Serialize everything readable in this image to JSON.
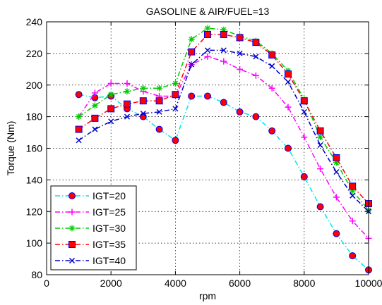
{
  "chart_data": {
    "type": "line",
    "title": "GASOLINE &  AIR/FUEL=13",
    "xlabel": "rpm",
    "ylabel": "Torque (Nm)",
    "xlim": [
      0,
      10000
    ],
    "ylim": [
      80,
      240
    ],
    "xticks": [
      0,
      2000,
      4000,
      6000,
      8000,
      10000
    ],
    "yticks": [
      80,
      100,
      120,
      140,
      160,
      180,
      200,
      220,
      240
    ],
    "grid": true,
    "legend_position": "bottom-left",
    "x": [
      1000,
      1500,
      2000,
      2500,
      3000,
      3500,
      4000,
      4500,
      5000,
      5500,
      6000,
      6500,
      7000,
      7500,
      8000,
      8500,
      9000,
      9500,
      10000
    ],
    "series": [
      {
        "name": "IGT=20",
        "color": "#00e6e6",
        "marker": "circle",
        "marker_face": "#ff0000",
        "marker_edge": "#0000ff",
        "values": [
          194,
          192,
          193,
          185,
          180,
          172,
          165,
          193,
          193,
          189,
          183,
          180,
          171,
          160,
          142,
          123,
          106,
          92,
          83
        ]
      },
      {
        "name": "IGT=25",
        "color": "#ff00ff",
        "marker": "plus",
        "values": [
          180,
          195,
          201,
          201,
          196,
          193,
          193,
          213,
          218,
          215,
          210,
          206,
          198,
          186,
          167,
          147,
          129,
          114,
          103
        ]
      },
      {
        "name": "IGT=30",
        "color": "#00cc00",
        "marker": "star",
        "values": [
          180,
          187,
          194,
          196,
          198,
          198,
          201,
          229,
          236,
          235,
          231,
          228,
          220,
          209,
          191,
          167,
          151,
          133,
          121
        ]
      },
      {
        "name": "IGT=35",
        "color": "#ff0000",
        "marker": "square",
        "marker_face": "#ff0000",
        "marker_edge": "#0000ff",
        "values": [
          172,
          179,
          185,
          188,
          190,
          190,
          194,
          221,
          232,
          232,
          230,
          227,
          219,
          207,
          190,
          171,
          154,
          136,
          125
        ]
      },
      {
        "name": "IGT=40",
        "color": "#0000cc",
        "marker": "x",
        "values": [
          165,
          172,
          177,
          180,
          182,
          183,
          185,
          213,
          222,
          222,
          220,
          218,
          212,
          202,
          183,
          162,
          145,
          130,
          120
        ]
      }
    ]
  }
}
